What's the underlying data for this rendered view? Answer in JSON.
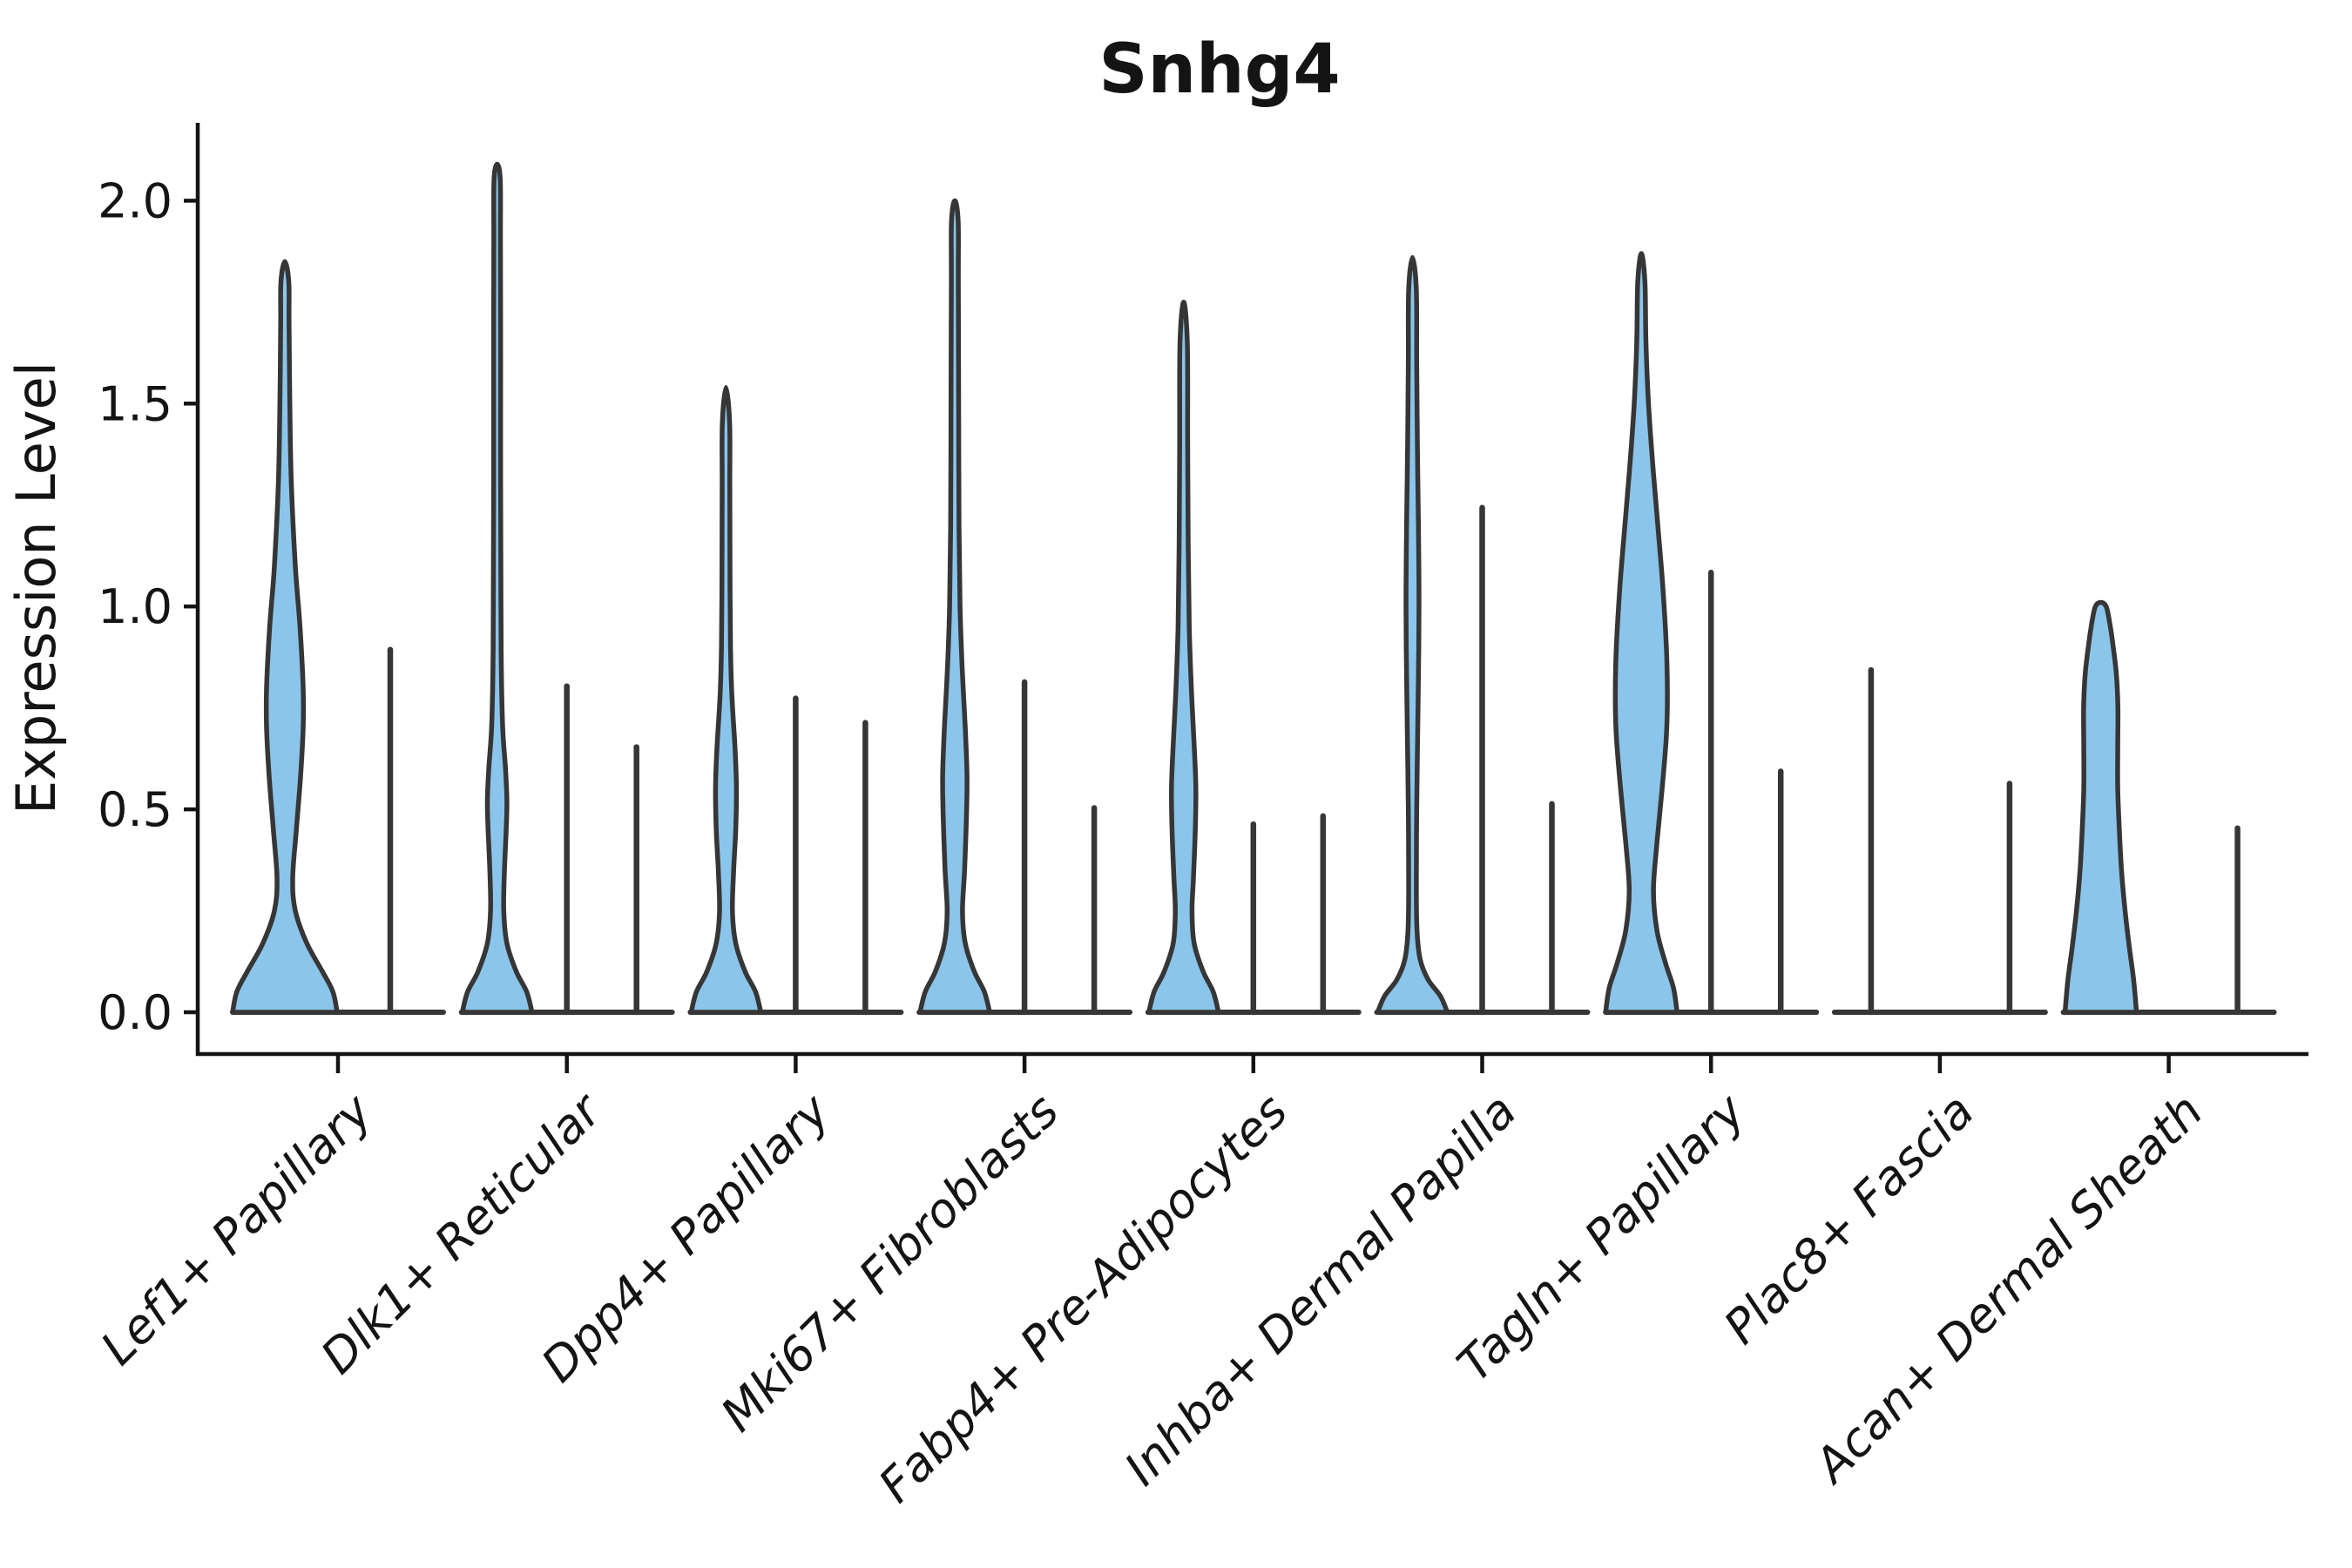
{
  "title": "Snhg4",
  "ylabel": "Expression Level",
  "colors": {
    "violin_fill": "#8BC5EB",
    "violin_stroke": "#363636",
    "axis": "#141414",
    "background": "#FFFFFF"
  },
  "chart_data": {
    "type": "violin",
    "title": "Snhg4",
    "xlabel": "",
    "ylabel": "Expression Level",
    "ylim": [
      -0.1,
      2.19
    ],
    "grid": false,
    "legend": null,
    "ytick_values": [
      0.0,
      0.5,
      1.0,
      1.5,
      2.0
    ],
    "ytick_labels": [
      "0.0",
      "0.5",
      "1.0",
      "1.5",
      "2.0"
    ],
    "categories": [
      "Lef1+ Papillary",
      "Dlk1+ Reticular",
      "Dpp4+ Papillary",
      "Mki67+ Fibroblasts",
      "Fabp4+ Pre-Adipocytes",
      "Inhba+ Dermal Papilla",
      "Tagln+ Papillary",
      "Plac8+ Fascia",
      "Acan+ Dermal Sheath"
    ],
    "groups": [
      {
        "label": "Lef1+ Papillary",
        "violins": [
          {
            "kind": "density",
            "slot_offset": -61,
            "half_width": 60,
            "max": 1.85,
            "profile": [
              [
                0,
                1
              ],
              [
                0.05,
                0.92
              ],
              [
                0.1,
                0.72
              ],
              [
                0.17,
                0.42
              ],
              [
                0.25,
                0.2
              ],
              [
                0.33,
                0.15
              ],
              [
                0.45,
                0.22
              ],
              [
                0.58,
                0.3
              ],
              [
                0.7,
                0.35
              ],
              [
                0.8,
                0.35
              ],
              [
                0.95,
                0.29
              ],
              [
                1.1,
                0.2
              ],
              [
                1.3,
                0.125
              ],
              [
                1.5,
                0.095
              ],
              [
                1.7,
                0.08
              ],
              [
                1.8,
                0.075
              ],
              [
                1.85,
                0
              ]
            ]
          },
          {
            "kind": "line",
            "slot_offset": 60,
            "max": 0.9
          }
        ]
      },
      {
        "label": "Dlk1+ Reticular",
        "violins": [
          {
            "kind": "density",
            "slot_offset": -80,
            "half_width": 40,
            "max": 2.09,
            "profile": [
              [
                0,
                1
              ],
              [
                0.05,
                0.85
              ],
              [
                0.1,
                0.55
              ],
              [
                0.17,
                0.28
              ],
              [
                0.25,
                0.19
              ],
              [
                0.35,
                0.21
              ],
              [
                0.45,
                0.26
              ],
              [
                0.52,
                0.28
              ],
              [
                0.6,
                0.24
              ],
              [
                0.7,
                0.16
              ],
              [
                0.85,
                0.12
              ],
              [
                1,
                0.11
              ],
              [
                1.3,
                0.1
              ],
              [
                1.6,
                0.1
              ],
              [
                1.9,
                0.095
              ],
              [
                2.05,
                0.09
              ],
              [
                2.09,
                0
              ]
            ]
          },
          {
            "kind": "line",
            "slot_offset": 0,
            "max": 0.81
          },
          {
            "kind": "line",
            "slot_offset": 80,
            "max": 0.66
          }
        ]
      },
      {
        "label": "Dpp4+ Papillary",
        "violins": [
          {
            "kind": "density",
            "slot_offset": -80,
            "half_width": 40,
            "max": 1.54,
            "profile": [
              [
                0,
                1
              ],
              [
                0.05,
                0.85
              ],
              [
                0.1,
                0.55
              ],
              [
                0.17,
                0.28
              ],
              [
                0.25,
                0.185
              ],
              [
                0.35,
                0.22
              ],
              [
                0.45,
                0.28
              ],
              [
                0.55,
                0.3
              ],
              [
                0.65,
                0.26
              ],
              [
                0.78,
                0.17
              ],
              [
                0.9,
                0.13
              ],
              [
                1.1,
                0.115
              ],
              [
                1.3,
                0.11
              ],
              [
                1.45,
                0.105
              ],
              [
                1.54,
                0
              ]
            ]
          },
          {
            "kind": "line",
            "slot_offset": 0,
            "max": 0.78
          },
          {
            "kind": "line",
            "slot_offset": 80,
            "max": 0.72
          }
        ]
      },
      {
        "label": "Mki67+ Fibroblasts",
        "violins": [
          {
            "kind": "density",
            "slot_offset": -80,
            "half_width": 40,
            "max": 2.0,
            "profile": [
              [
                0,
                1
              ],
              [
                0.05,
                0.85
              ],
              [
                0.1,
                0.56
              ],
              [
                0.17,
                0.3
              ],
              [
                0.25,
                0.22
              ],
              [
                0.35,
                0.28
              ],
              [
                0.47,
                0.33
              ],
              [
                0.58,
                0.35
              ],
              [
                0.7,
                0.3
              ],
              [
                0.85,
                0.21
              ],
              [
                1,
                0.15
              ],
              [
                1.2,
                0.12
              ],
              [
                1.5,
                0.11
              ],
              [
                1.8,
                0.1
              ],
              [
                1.95,
                0.095
              ],
              [
                2,
                0
              ]
            ]
          },
          {
            "kind": "line",
            "slot_offset": 0,
            "max": 0.82
          },
          {
            "kind": "line",
            "slot_offset": 80,
            "max": 0.51
          }
        ]
      },
      {
        "label": "Fabp4+ Pre-Adipocytes",
        "violins": [
          {
            "kind": "density",
            "slot_offset": -80,
            "half_width": 40,
            "max": 1.75,
            "profile": [
              [
                0,
                1
              ],
              [
                0.05,
                0.85
              ],
              [
                0.1,
                0.56
              ],
              [
                0.17,
                0.3
              ],
              [
                0.25,
                0.24
              ],
              [
                0.33,
                0.28
              ],
              [
                0.44,
                0.33
              ],
              [
                0.55,
                0.35
              ],
              [
                0.66,
                0.3
              ],
              [
                0.8,
                0.22
              ],
              [
                0.95,
                0.16
              ],
              [
                1.15,
                0.13
              ],
              [
                1.4,
                0.115
              ],
              [
                1.65,
                0.105
              ],
              [
                1.75,
                0
              ]
            ]
          },
          {
            "kind": "line",
            "slot_offset": 0,
            "max": 0.47
          },
          {
            "kind": "line",
            "slot_offset": 80,
            "max": 0.49
          }
        ]
      },
      {
        "label": "Inhba+ Dermal Papilla",
        "violins": [
          {
            "kind": "density",
            "slot_offset": -80,
            "half_width": 40,
            "max": 1.86,
            "profile": [
              [
                0,
                1
              ],
              [
                0.04,
                0.8
              ],
              [
                0.08,
                0.45
              ],
              [
                0.13,
                0.22
              ],
              [
                0.2,
                0.13
              ],
              [
                0.3,
                0.11
              ],
              [
                0.5,
                0.12
              ],
              [
                0.7,
                0.15
              ],
              [
                0.9,
                0.18
              ],
              [
                1.05,
                0.185
              ],
              [
                1.2,
                0.17
              ],
              [
                1.4,
                0.14
              ],
              [
                1.6,
                0.12
              ],
              [
                1.78,
                0.11
              ],
              [
                1.86,
                0
              ]
            ]
          },
          {
            "kind": "line",
            "slot_offset": 0,
            "max": 1.25
          },
          {
            "kind": "line",
            "slot_offset": 80,
            "max": 0.52
          }
        ]
      },
      {
        "label": "Tagln+ Papillary",
        "violins": [
          {
            "kind": "density",
            "slot_offset": -80,
            "half_width": 41,
            "max": 1.87,
            "profile": [
              [
                0,
                1
              ],
              [
                0.06,
                0.9
              ],
              [
                0.12,
                0.68
              ],
              [
                0.2,
                0.44
              ],
              [
                0.3,
                0.34
              ],
              [
                0.42,
                0.44
              ],
              [
                0.55,
                0.58
              ],
              [
                0.68,
                0.7
              ],
              [
                0.78,
                0.73
              ],
              [
                0.9,
                0.7
              ],
              [
                1.05,
                0.6
              ],
              [
                1.2,
                0.46
              ],
              [
                1.35,
                0.32
              ],
              [
                1.5,
                0.2
              ],
              [
                1.65,
                0.13
              ],
              [
                1.8,
                0.1
              ],
              [
                1.87,
                0
              ]
            ]
          },
          {
            "kind": "line",
            "slot_offset": 0,
            "max": 1.09
          },
          {
            "kind": "line",
            "slot_offset": 80,
            "max": 0.6
          }
        ]
      },
      {
        "label": "Plac8+ Fascia",
        "violins": [
          {
            "kind": "line",
            "slot_offset": -79,
            "max": 0.85
          },
          {
            "kind": "line",
            "slot_offset": 80,
            "max": 0.57
          }
        ]
      },
      {
        "label": "Acan+ Dermal Sheath",
        "violins": [
          {
            "kind": "density",
            "slot_offset": -78,
            "half_width": 41,
            "max": 1.01,
            "profile": [
              [
                0,
                1
              ],
              [
                0.08,
                0.92
              ],
              [
                0.16,
                0.8
              ],
              [
                0.25,
                0.68
              ],
              [
                0.35,
                0.58
              ],
              [
                0.45,
                0.52
              ],
              [
                0.55,
                0.475
              ],
              [
                0.65,
                0.475
              ],
              [
                0.75,
                0.48
              ],
              [
                0.83,
                0.44
              ],
              [
                0.9,
                0.35
              ],
              [
                0.96,
                0.25
              ],
              [
                1,
                0.15
              ],
              [
                1.01,
                0
              ]
            ]
          },
          {
            "kind": "line",
            "slot_offset": 79,
            "max": 0.46
          }
        ]
      }
    ]
  }
}
